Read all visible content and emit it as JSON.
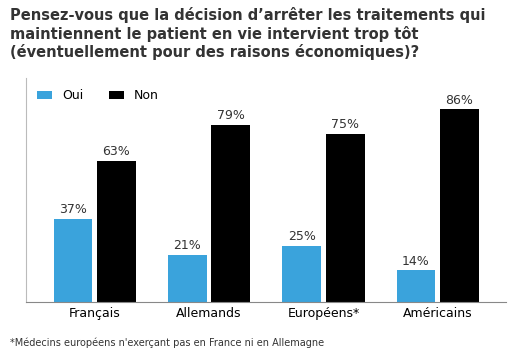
{
  "chart_data": {
    "type": "bar",
    "title": "Pensez-vous que la décision d’arrêter les traitements qui maintiennent le patient en vie intervient trop tôt (éventuellement pour des raisons économiques)?",
    "categories": [
      "Français",
      "Allemands",
      "Européens*",
      "Américains"
    ],
    "series": [
      {
        "name": "Oui",
        "color": "#3aa3dc",
        "values": [
          37,
          21,
          25,
          14
        ],
        "value_labels": [
          "37%",
          "21%",
          "25%",
          "14%"
        ]
      },
      {
        "name": "Non",
        "color": "#000000",
        "values": [
          63,
          79,
          75,
          86
        ],
        "value_labels": [
          "63%",
          "79%",
          "75%",
          "86%"
        ]
      }
    ],
    "ylim": [
      0,
      100
    ],
    "legend": "upper left",
    "data_labels": true,
    "tick_labels": "x",
    "annotations": [
      "*Médecins européens n'exerçant pas en France ni en Allemagne"
    ]
  }
}
